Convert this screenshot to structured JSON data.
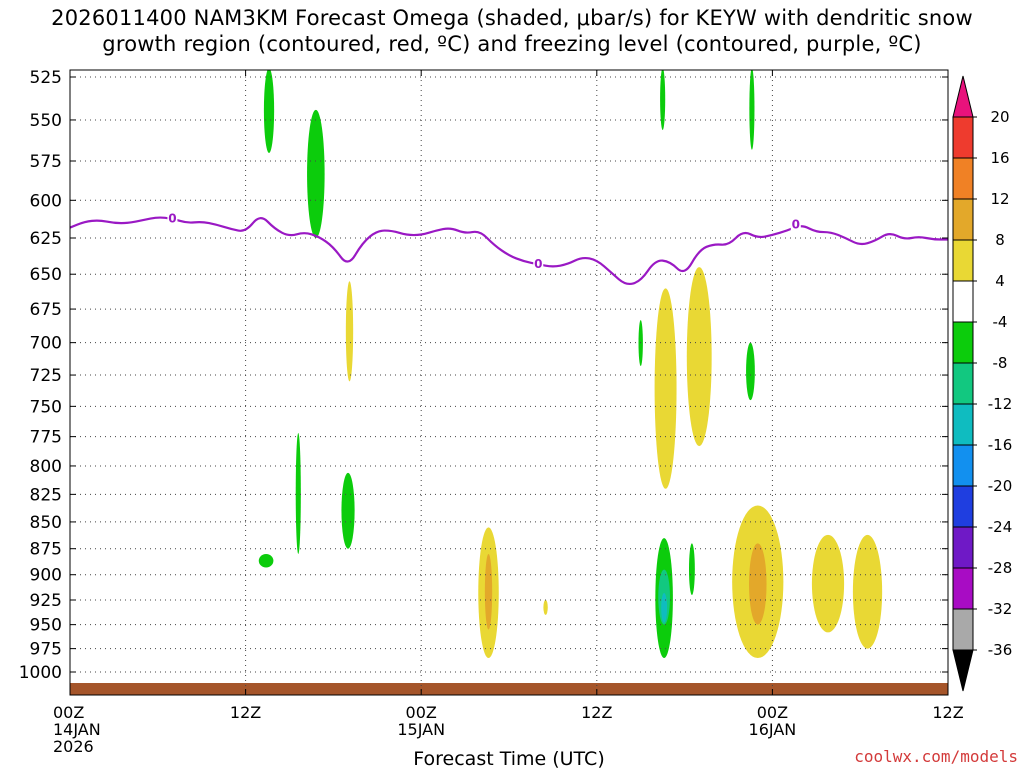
{
  "title": {
    "line1": "2026011400 NAM3KM Forecast Omega (shaded, μbar/s) for KEYW with dendritic snow",
    "line2": "growth region (contoured, red, ºC) and freezing level (contoured, purple, ºC)"
  },
  "credit": "coolwx.com/models",
  "chart_data": {
    "type": "heatmap",
    "title": "2026011400 NAM3KM Forecast Omega (shaded, μbar/s) for KEYW with dendritic snow growth region (contoured, red, ºC) and freezing level (contoured, purple, ºC)",
    "xlabel": "Forecast Time (UTC)",
    "ylabel": "",
    "x_ticks": [
      {
        "hour": 0,
        "lines": [
          "00Z",
          "14JAN",
          "2026"
        ]
      },
      {
        "hour": 12,
        "lines": [
          "12Z"
        ]
      },
      {
        "hour": 24,
        "lines": [
          "00Z",
          "15JAN"
        ]
      },
      {
        "hour": 36,
        "lines": [
          "12Z"
        ]
      },
      {
        "hour": 48,
        "lines": [
          "00Z",
          "16JAN"
        ]
      },
      {
        "hour": 60,
        "lines": [
          "12Z"
        ]
      }
    ],
    "xlim": [
      0,
      60
    ],
    "y_ticks": [
      525,
      550,
      575,
      600,
      625,
      650,
      675,
      700,
      725,
      750,
      775,
      800,
      825,
      850,
      875,
      900,
      925,
      950,
      975,
      1000
    ],
    "ylim": [
      520,
      1010
    ],
    "y_scale": "log-pressure",
    "grid": true,
    "colorbar": {
      "levels": [
        "20",
        "16",
        "12",
        "8",
        "4",
        "-4",
        "-8",
        "-12",
        "-16",
        "-20",
        "-24",
        "-28",
        "-32",
        "-36"
      ],
      "colors": [
        "#e8127c",
        "#ee3b2e",
        "#f08125",
        "#e3a82a",
        "#e9d834",
        "#ffffff",
        "#0ccc0c",
        "#12c880",
        "#0fbcc0",
        "#1290ef",
        "#1f3ee0",
        "#6f19c6",
        "#a80cc4",
        "#a9a9a9",
        "#000000"
      ]
    },
    "freezing_level": {
      "value_label": "0",
      "points": [
        [
          0,
          618
        ],
        [
          1,
          614
        ],
        [
          2,
          613
        ],
        [
          3,
          615
        ],
        [
          4,
          615
        ],
        [
          5,
          613
        ],
        [
          6,
          611
        ],
        [
          7,
          612
        ],
        [
          8,
          615
        ],
        [
          9,
          614
        ],
        [
          10,
          616
        ],
        [
          11,
          619
        ],
        [
          12,
          621
        ],
        [
          13,
          609
        ],
        [
          14,
          619
        ],
        [
          15,
          624
        ],
        [
          16,
          621
        ],
        [
          17,
          624
        ],
        [
          18,
          631
        ],
        [
          19,
          645
        ],
        [
          20,
          628
        ],
        [
          21,
          620
        ],
        [
          22,
          620
        ],
        [
          23,
          623
        ],
        [
          24,
          623
        ],
        [
          25,
          620
        ],
        [
          26,
          618
        ],
        [
          27,
          622
        ],
        [
          28,
          620
        ],
        [
          29,
          630
        ],
        [
          30,
          637
        ],
        [
          31,
          641
        ],
        [
          32,
          643
        ],
        [
          33,
          645
        ],
        [
          34,
          643
        ],
        [
          35,
          638
        ],
        [
          36,
          640
        ],
        [
          37,
          649
        ],
        [
          38,
          658
        ],
        [
          39,
          655
        ],
        [
          40,
          640
        ],
        [
          41,
          641
        ],
        [
          42,
          651
        ],
        [
          43,
          633
        ],
        [
          44,
          629
        ],
        [
          45,
          630
        ],
        [
          46,
          620
        ],
        [
          47,
          625
        ],
        [
          48,
          623
        ],
        [
          49,
          620
        ],
        [
          50,
          616
        ],
        [
          51,
          621
        ],
        [
          52,
          621
        ],
        [
          53,
          625
        ],
        [
          54,
          630
        ],
        [
          55,
          627
        ],
        [
          56,
          621
        ],
        [
          57,
          626
        ],
        [
          58,
          624
        ],
        [
          59,
          626
        ],
        [
          60,
          626
        ]
      ]
    },
    "omega_regions": [
      {
        "color": "#0ccc0c",
        "x": 13.6,
        "p": [
          520,
          570
        ],
        "w": 0.7
      },
      {
        "color": "#0ccc0c",
        "x": 16.8,
        "p": [
          544,
          625
        ],
        "w": 1.2
      },
      {
        "color": "#0ccc0c",
        "x": 40.5,
        "p": [
          520,
          556
        ],
        "w": 0.35
      },
      {
        "color": "#0ccc0c",
        "x": 46.6,
        "p": [
          520,
          568
        ],
        "w": 0.35
      },
      {
        "color": "#e9d834",
        "x": 19.1,
        "p": [
          655,
          730
        ],
        "w": 0.5
      },
      {
        "color": "#0ccc0c",
        "x": 39.0,
        "p": [
          683,
          718
        ],
        "w": 0.3
      },
      {
        "color": "#e9d834",
        "x": 40.7,
        "p": [
          660,
          820
        ],
        "w": 1.5
      },
      {
        "color": "#e9d834",
        "x": 43.0,
        "p": [
          645,
          783
        ],
        "w": 1.7
      },
      {
        "color": "#0ccc0c",
        "x": 46.5,
        "p": [
          700,
          745
        ],
        "w": 0.6
      },
      {
        "color": "#0ccc0c",
        "x": 15.6,
        "p": [
          772,
          880
        ],
        "w": 0.35
      },
      {
        "color": "#0ccc0c",
        "x": 19.0,
        "p": [
          806,
          875
        ],
        "w": 0.9
      },
      {
        "color": "#0ccc0c",
        "x": 13.4,
        "p": [
          880,
          893
        ],
        "w": 1.0
      },
      {
        "color": "#e9d834",
        "x": 28.6,
        "p": [
          855,
          985
        ],
        "w": 1.4
      },
      {
        "color": "#e3a82a",
        "x": 28.6,
        "p": [
          880,
          955
        ],
        "w": 0.5
      },
      {
        "color": "#e9d834",
        "x": 32.5,
        "p": [
          925,
          940
        ],
        "w": 0.3
      },
      {
        "color": "#0ccc0c",
        "x": 40.6,
        "p": [
          865,
          985
        ],
        "w": 1.2
      },
      {
        "color": "#12c880",
        "x": 40.6,
        "p": [
          895,
          950
        ],
        "w": 0.8
      },
      {
        "color": "#0fbcc0",
        "x": 40.6,
        "p": [
          918,
          948
        ],
        "w": 0.4
      },
      {
        "color": "#0ccc0c",
        "x": 42.5,
        "p": [
          870,
          920
        ],
        "w": 0.4
      },
      {
        "color": "#e9d834",
        "x": 47.0,
        "p": [
          835,
          985
        ],
        "w": 3.5
      },
      {
        "color": "#e3a82a",
        "x": 47.0,
        "p": [
          870,
          950
        ],
        "w": 1.2
      },
      {
        "color": "#e9d834",
        "x": 51.8,
        "p": [
          862,
          958
        ],
        "w": 2.2
      },
      {
        "color": "#e9d834",
        "x": 54.5,
        "p": [
          862,
          975
        ],
        "w": 2.0
      }
    ],
    "terrain": {
      "color": "#a5552a",
      "p_top": 1012
    }
  }
}
